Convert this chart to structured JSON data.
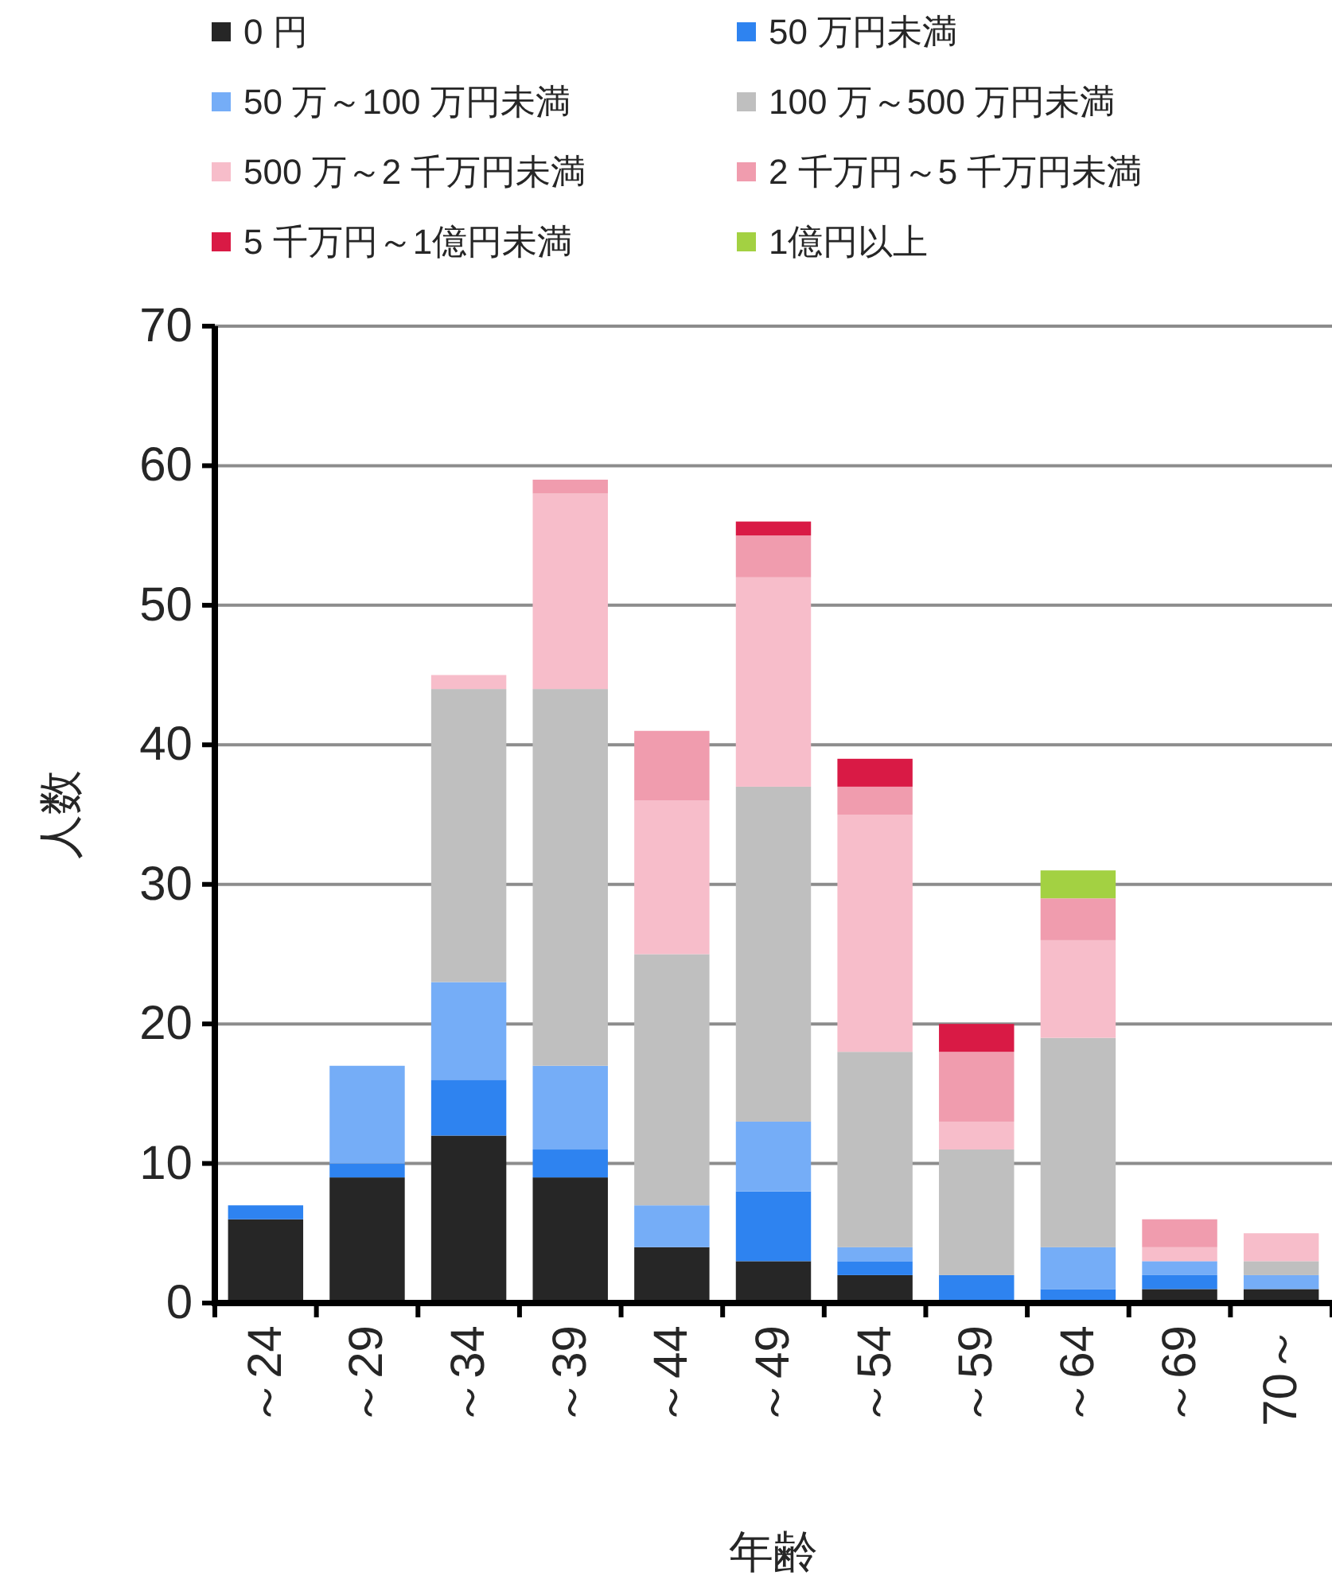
{
  "chart_data": {
    "type": "bar",
    "stacked": true,
    "xlabel": "年齢",
    "ylabel": "人数",
    "categories": [
      "～24",
      "～29",
      "～34",
      "～39",
      "～44",
      "～49",
      "～54",
      "～59",
      "～64",
      "～69",
      "70～"
    ],
    "series": [
      {
        "name": "0 円",
        "color": "#262626",
        "values": [
          6,
          9,
          12,
          9,
          4,
          3,
          2,
          0,
          0,
          1,
          1
        ]
      },
      {
        "name": "50 万円未満",
        "color": "#2e83f0",
        "values": [
          1,
          1,
          4,
          2,
          0,
          5,
          1,
          2,
          1,
          1,
          0
        ]
      },
      {
        "name": "50 万～100 万円未満",
        "color": "#75adf7",
        "values": [
          0,
          7,
          7,
          6,
          3,
          5,
          1,
          0,
          3,
          1,
          1
        ]
      },
      {
        "name": "100 万～500 万円未満",
        "color": "#bfbfbf",
        "values": [
          0,
          0,
          21,
          27,
          18,
          24,
          14,
          9,
          15,
          0,
          1
        ]
      },
      {
        "name": "500 万～2 千万円未満",
        "color": "#f7bdca",
        "values": [
          0,
          0,
          1,
          14,
          11,
          15,
          17,
          2,
          7,
          1,
          2
        ]
      },
      {
        "name": "2 千万円～5 千万円未満",
        "color": "#f09cae",
        "values": [
          0,
          0,
          0,
          1,
          5,
          3,
          2,
          5,
          3,
          2,
          0
        ]
      },
      {
        "name": "5 千万円～1億円未満",
        "color": "#d91a45",
        "values": [
          0,
          0,
          0,
          0,
          0,
          1,
          2,
          2,
          0,
          0,
          0
        ]
      },
      {
        "name": "1億円以上",
        "color": "#a3d142",
        "values": [
          0,
          0,
          0,
          0,
          0,
          0,
          0,
          0,
          2,
          0,
          0
        ]
      }
    ],
    "ylim": [
      0,
      70
    ],
    "yticks": [
      0,
      10,
      20,
      30,
      40,
      50,
      60,
      70
    ],
    "grid": "y",
    "legend": "top"
  }
}
